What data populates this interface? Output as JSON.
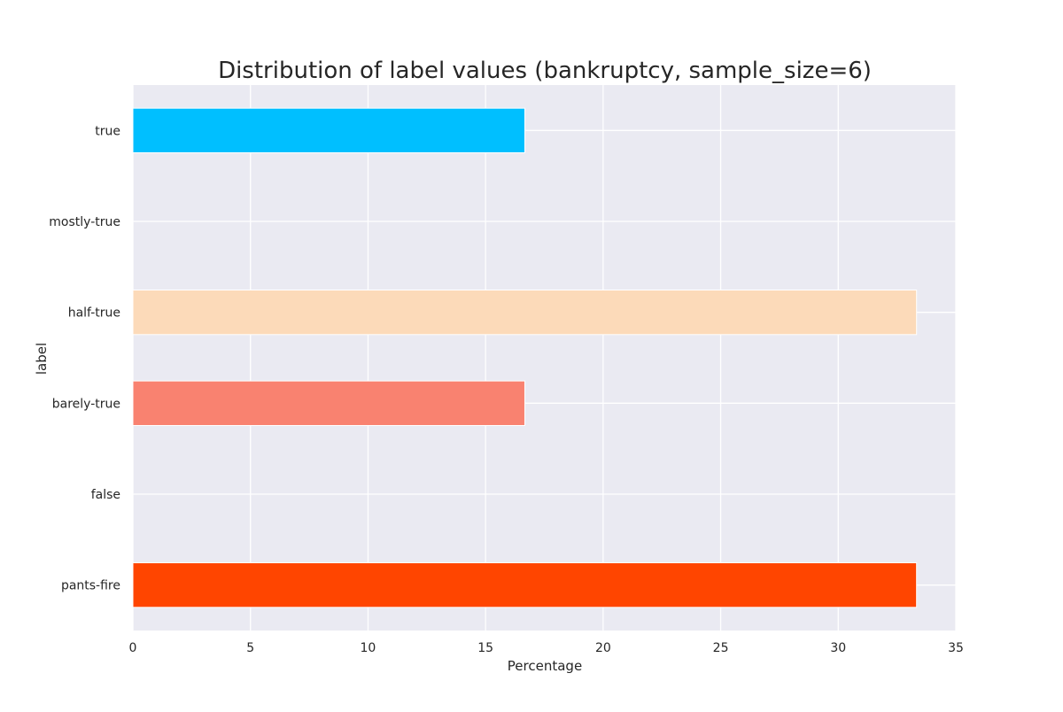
{
  "chart_data": {
    "type": "bar",
    "orientation": "horizontal",
    "title": "Distribution of label values (bankruptcy, sample_size=6)",
    "xlabel": "Percentage",
    "ylabel": "label",
    "categories": [
      "true",
      "mostly-true",
      "half-true",
      "barely-true",
      "false",
      "pants-fire"
    ],
    "values": [
      16.67,
      0,
      33.33,
      16.67,
      0,
      33.33
    ],
    "colors": [
      "#00BFFF",
      "#FFFFFF",
      "#FCDAB9",
      "#F98270",
      "#FFFFFF",
      "#FF4500"
    ],
    "xlim": [
      0,
      35
    ],
    "xticks": [
      0,
      5,
      10,
      15,
      20,
      25,
      30,
      35
    ],
    "grid": true,
    "plot_background": "#EAEAF2",
    "grid_color": "#FFFFFF"
  }
}
